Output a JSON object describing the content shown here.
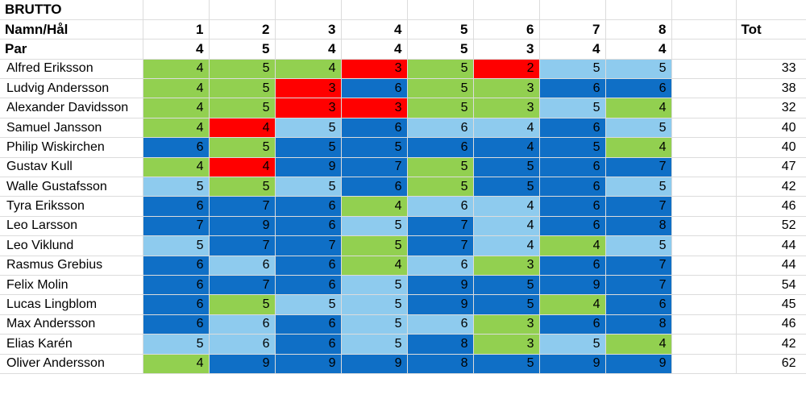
{
  "sheet": {
    "title": "BRUTTO",
    "header_label": "Namn/Hål",
    "holes": [
      "1",
      "2",
      "3",
      "4",
      "5",
      "6",
      "7",
      "8"
    ],
    "total_label": "Tot",
    "par_label": "Par",
    "par": [
      "4",
      "5",
      "4",
      "4",
      "5",
      "3",
      "4",
      "4"
    ]
  },
  "colors": {
    "green": "#92d050",
    "red": "#ff0000",
    "light_blue": "#8ecbee",
    "dark_blue": "#0f6fc6"
  },
  "players": [
    {
      "name": "Alfred Eriksson",
      "scores": [
        "4",
        "5",
        "4",
        "3",
        "5",
        "2",
        "5",
        "5"
      ],
      "total": "33"
    },
    {
      "name": "Ludvig Andersson",
      "scores": [
        "4",
        "5",
        "3",
        "6",
        "5",
        "3",
        "6",
        "6"
      ],
      "total": "38"
    },
    {
      "name": "Alexander Davidsson",
      "scores": [
        "4",
        "5",
        "3",
        "3",
        "5",
        "3",
        "5",
        "4"
      ],
      "total": "32"
    },
    {
      "name": "Samuel Jansson",
      "scores": [
        "4",
        "4",
        "5",
        "6",
        "6",
        "4",
        "6",
        "5"
      ],
      "total": "40"
    },
    {
      "name": "Philip Wiskirchen",
      "scores": [
        "6",
        "5",
        "5",
        "5",
        "6",
        "4",
        "5",
        "4"
      ],
      "total": "40"
    },
    {
      "name": "Gustav Kull",
      "scores": [
        "4",
        "4",
        "9",
        "7",
        "5",
        "5",
        "6",
        "7"
      ],
      "total": "47"
    },
    {
      "name": "Walle Gustafsson",
      "scores": [
        "5",
        "5",
        "5",
        "6",
        "5",
        "5",
        "6",
        "5"
      ],
      "total": "42"
    },
    {
      "name": "Tyra Eriksson",
      "scores": [
        "6",
        "7",
        "6",
        "4",
        "6",
        "4",
        "6",
        "7"
      ],
      "total": "46"
    },
    {
      "name": "Leo Larsson",
      "scores": [
        "7",
        "9",
        "6",
        "5",
        "7",
        "4",
        "6",
        "8"
      ],
      "total": "52"
    },
    {
      "name": "Leo Viklund",
      "scores": [
        "5",
        "7",
        "7",
        "5",
        "7",
        "4",
        "4",
        "5"
      ],
      "total": "44"
    },
    {
      "name": "Rasmus Grebius",
      "scores": [
        "6",
        "6",
        "6",
        "4",
        "6",
        "3",
        "6",
        "7"
      ],
      "total": "44"
    },
    {
      "name": "Felix Molin",
      "scores": [
        "6",
        "7",
        "6",
        "5",
        "9",
        "5",
        "9",
        "7"
      ],
      "total": "54"
    },
    {
      "name": "Lucas Lingblom",
      "scores": [
        "6",
        "5",
        "5",
        "5",
        "9",
        "5",
        "4",
        "6"
      ],
      "total": "45"
    },
    {
      "name": "Max Andersson",
      "scores": [
        "6",
        "6",
        "6",
        "5",
        "6",
        "3",
        "6",
        "8"
      ],
      "total": "46"
    },
    {
      "name": "Elias Karén",
      "scores": [
        "5",
        "6",
        "6",
        "5",
        "8",
        "3",
        "5",
        "4"
      ],
      "total": "42"
    },
    {
      "name": "Oliver Andersson",
      "scores": [
        "4",
        "9",
        "9",
        "9",
        "8",
        "5",
        "9",
        "9"
      ],
      "total": "62"
    }
  ],
  "cell_colors": [
    [
      "green",
      "green",
      "green",
      "red",
      "green",
      "red",
      "light_blue",
      "light_blue"
    ],
    [
      "green",
      "green",
      "red",
      "dark_blue",
      "green",
      "green",
      "dark_blue",
      "dark_blue"
    ],
    [
      "green",
      "green",
      "red",
      "red",
      "green",
      "green",
      "light_blue",
      "green"
    ],
    [
      "green",
      "red",
      "light_blue",
      "dark_blue",
      "light_blue",
      "light_blue",
      "dark_blue",
      "light_blue"
    ],
    [
      "dark_blue",
      "green",
      "dark_blue",
      "dark_blue",
      "dark_blue",
      "dark_blue",
      "dark_blue",
      "green"
    ],
    [
      "green",
      "red",
      "dark_blue",
      "dark_blue",
      "green",
      "dark_blue",
      "dark_blue",
      "dark_blue"
    ],
    [
      "light_blue",
      "green",
      "light_blue",
      "dark_blue",
      "green",
      "dark_blue",
      "dark_blue",
      "light_blue"
    ],
    [
      "dark_blue",
      "dark_blue",
      "dark_blue",
      "green",
      "light_blue",
      "light_blue",
      "dark_blue",
      "dark_blue"
    ],
    [
      "dark_blue",
      "dark_blue",
      "dark_blue",
      "light_blue",
      "dark_blue",
      "light_blue",
      "dark_blue",
      "dark_blue"
    ],
    [
      "light_blue",
      "dark_blue",
      "dark_blue",
      "green",
      "dark_blue",
      "light_blue",
      "green",
      "light_blue"
    ],
    [
      "dark_blue",
      "light_blue",
      "dark_blue",
      "green",
      "light_blue",
      "green",
      "dark_blue",
      "dark_blue"
    ],
    [
      "dark_blue",
      "dark_blue",
      "dark_blue",
      "light_blue",
      "dark_blue",
      "dark_blue",
      "dark_blue",
      "dark_blue"
    ],
    [
      "dark_blue",
      "green",
      "light_blue",
      "light_blue",
      "dark_blue",
      "dark_blue",
      "green",
      "dark_blue"
    ],
    [
      "dark_blue",
      "light_blue",
      "dark_blue",
      "light_blue",
      "light_blue",
      "green",
      "dark_blue",
      "dark_blue"
    ],
    [
      "light_blue",
      "light_blue",
      "dark_blue",
      "light_blue",
      "dark_blue",
      "green",
      "light_blue",
      "green"
    ],
    [
      "green",
      "dark_blue",
      "dark_blue",
      "dark_blue",
      "dark_blue",
      "dark_blue",
      "dark_blue",
      "dark_blue"
    ]
  ]
}
